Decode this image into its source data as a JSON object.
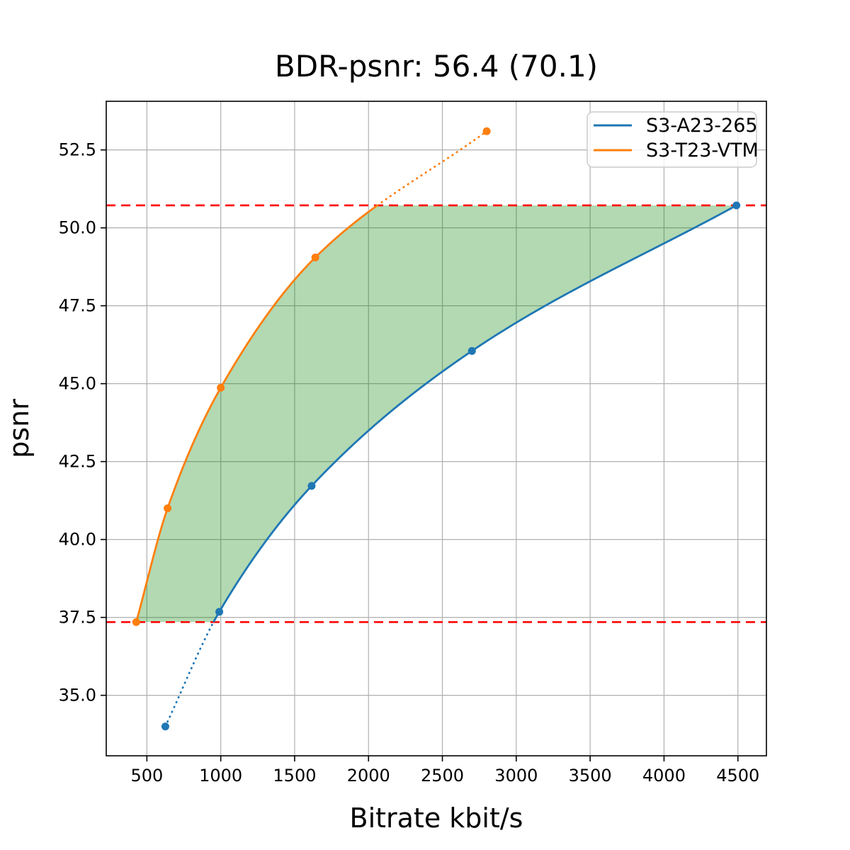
{
  "chart_data": {
    "type": "line",
    "title": "BDR-psnr: 56.4 (70.1)",
    "xlabel": "Bitrate kbit/s",
    "ylabel": "psnr",
    "xlim": [
      225,
      4693
    ],
    "ylim": [
      33.06,
      54.06
    ],
    "grid": true,
    "legend_position": "upper right",
    "xtick_labels": [
      "500",
      "1000",
      "1500",
      "2000",
      "2500",
      "3000",
      "3500",
      "4000",
      "4500"
    ],
    "ytick_labels": [
      "35.0",
      "37.5",
      "40.0",
      "42.5",
      "45.0",
      "47.5",
      "50.0",
      "52.5"
    ],
    "series": [
      {
        "name": "S3-A23-265",
        "color": "#1f77b4",
        "marker": "circle",
        "x": [
          625,
          990,
          1615,
          2700,
          4490
        ],
        "y": [
          34.0,
          37.68,
          41.72,
          46.05,
          50.72
        ]
      },
      {
        "name": "S3-T23-VTM",
        "color": "#ff7f0e",
        "marker": "circle",
        "x": [
          428,
          640,
          1000,
          1640,
          2800
        ],
        "y": [
          37.35,
          41.0,
          44.87,
          49.05,
          53.1
        ]
      }
    ],
    "overlap_band": {
      "psnr_low": 37.35,
      "psnr_high": 50.72,
      "line_color": "#ff0000",
      "line_style": "dashed",
      "note_style": "curves dotted outside band"
    },
    "fill_region": {
      "color": "#008000",
      "opacity": 0.3
    },
    "grid_color": "#b0b0b0"
  }
}
